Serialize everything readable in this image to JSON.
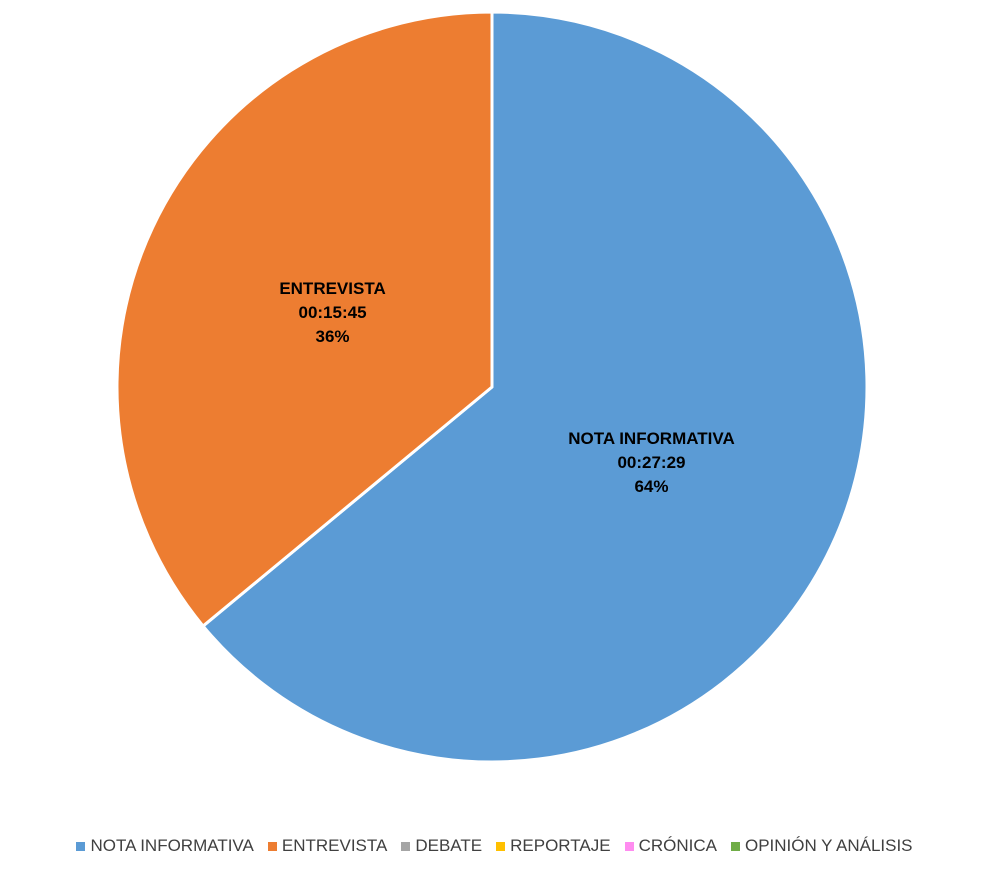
{
  "chart_data": {
    "type": "pie",
    "start_angle_deg": 0,
    "direction": "clockwise",
    "slices": [
      {
        "name": "NOTA INFORMATIVA",
        "time": "00:27:29",
        "value": 64,
        "percent_label": "64%",
        "color": "#5B9BD5"
      },
      {
        "name": "ENTREVISTA",
        "time": "00:15:45",
        "value": 36,
        "percent_label": "36%",
        "color": "#ED7D31"
      }
    ],
    "legend": {
      "position": "bottom",
      "items": [
        {
          "label": "NOTA INFORMATIVA",
          "color": "#5B9BD5"
        },
        {
          "label": "ENTREVISTA",
          "color": "#ED7D31"
        },
        {
          "label": "DEBATE",
          "color": "#A5A5A5"
        },
        {
          "label": "REPORTAJE",
          "color": "#FFC000"
        },
        {
          "label": "CRÓNICA",
          "color": "#FF8CF0"
        },
        {
          "label": "OPINIÓN Y ANÁLISIS",
          "color": "#70AD47"
        }
      ]
    }
  }
}
